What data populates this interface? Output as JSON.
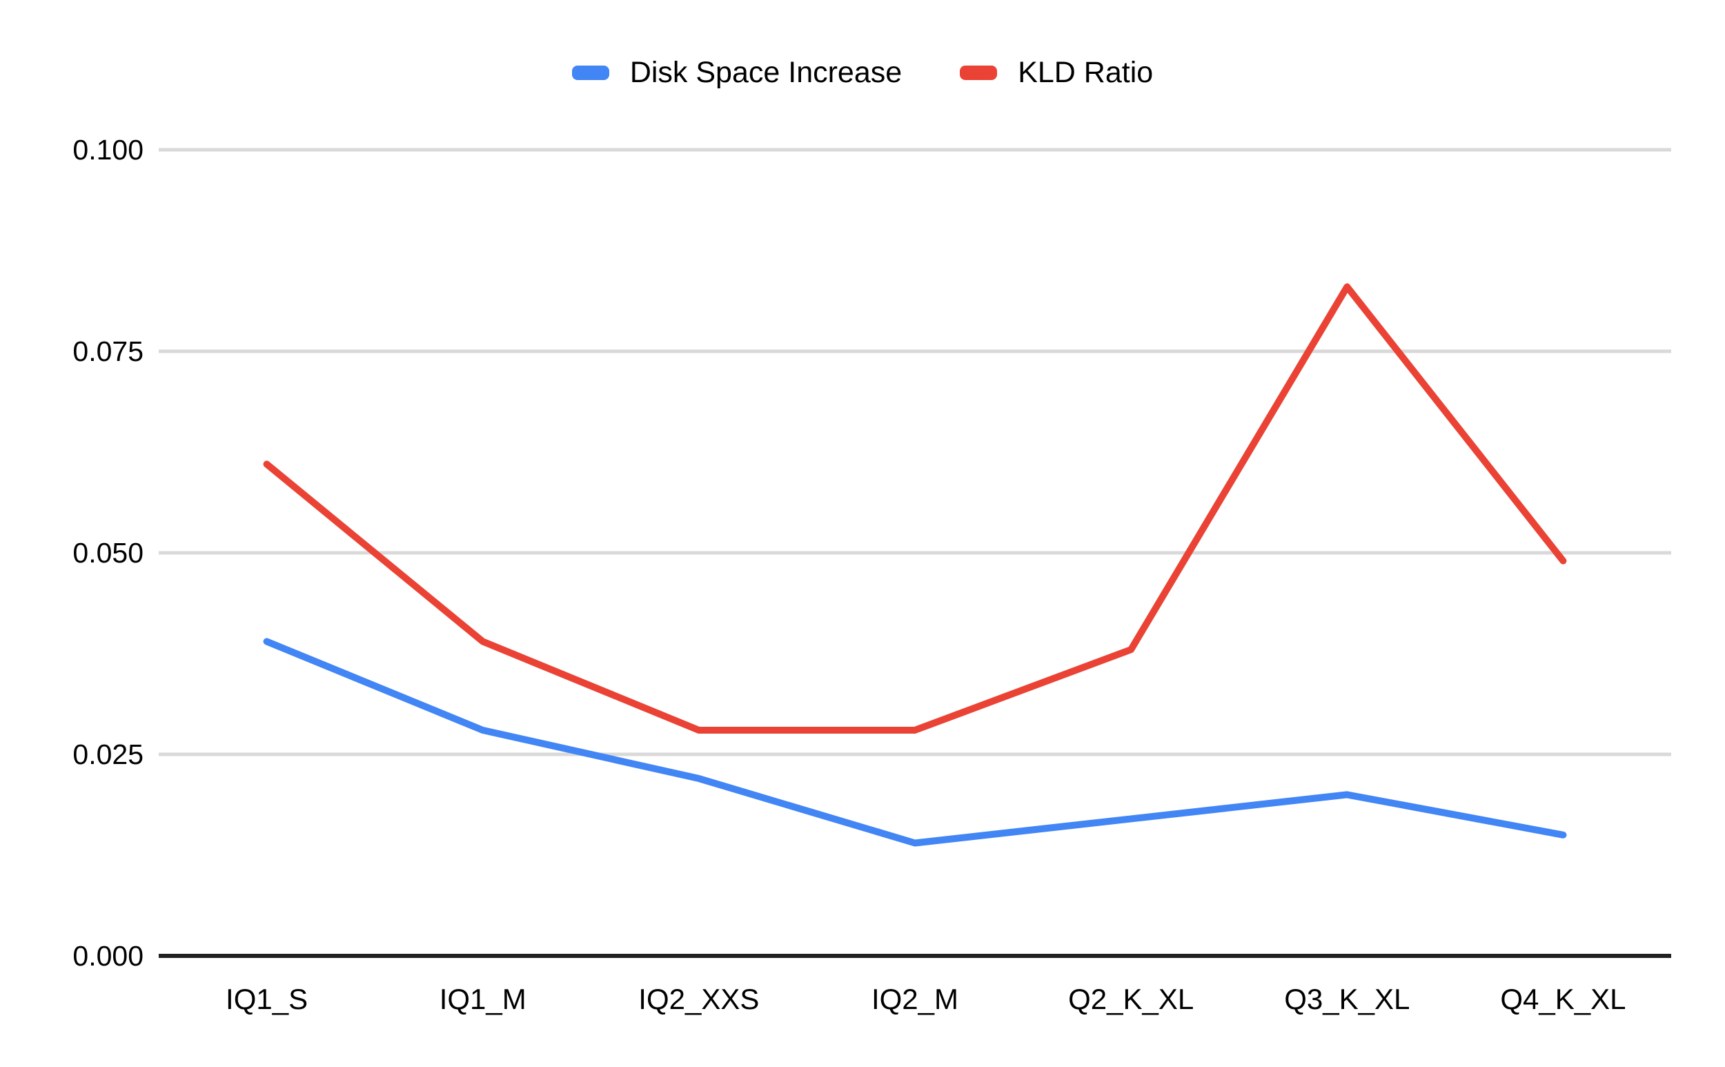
{
  "chart_data": {
    "type": "line",
    "title": "",
    "xlabel": "",
    "ylabel": "",
    "categories": [
      "IQ1_S",
      "IQ1_M",
      "IQ2_XXS",
      "IQ2_M",
      "Q2_K_XL",
      "Q3_K_XL",
      "Q4_K_XL"
    ],
    "series": [
      {
        "name": "Disk Space Increase",
        "color": "#4285F4",
        "values": [
          0.039,
          0.028,
          0.022,
          0.014,
          0.017,
          0.02,
          0.015
        ]
      },
      {
        "name": "KLD Ratio",
        "color": "#EA4335",
        "values": [
          0.061,
          0.039,
          0.028,
          0.028,
          0.038,
          0.083,
          0.049
        ]
      }
    ],
    "ylim": [
      0,
      0.1
    ],
    "y_ticks": [
      "0.000",
      "0.025",
      "0.050",
      "0.075",
      "0.100"
    ],
    "grid": true,
    "legend_position": "top-center",
    "background_color": "#FFFFFF",
    "gridline_color": "#D9D9D9",
    "axis_line_color": "#212121",
    "text_color": "#000000"
  }
}
